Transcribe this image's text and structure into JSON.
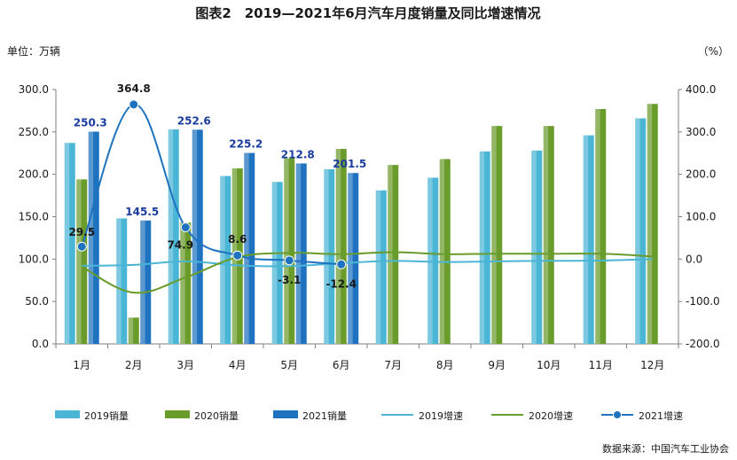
{
  "chart_data": {
    "type": "bar",
    "title": "图表2　2019—2021年6月汽车月度销量及同比增速情况",
    "left_unit": "单位：万辆",
    "right_unit": "（%）",
    "source": "数据来源：中国汽车工业协会",
    "categories": [
      "1月",
      "2月",
      "3月",
      "4月",
      "5月",
      "6月",
      "7月",
      "8月",
      "9月",
      "10月",
      "11月",
      "12月"
    ],
    "ylim": [
      0,
      300
    ],
    "y_ticks": [
      "0.0",
      "50.0",
      "100.0",
      "150.0",
      "200.0",
      "250.0",
      "300.0"
    ],
    "y2lim": [
      -200,
      400
    ],
    "y2_ticks": [
      "-200.0",
      "-100.0",
      "0.0",
      "100.0",
      "200.0",
      "300.0",
      "400.0"
    ],
    "grid": false,
    "legend_position": "bottom",
    "series": [
      {
        "name": "2019销量",
        "kind": "bar",
        "axis": "left",
        "color": "#4bb5d6",
        "values": [
          237,
          148,
          253,
          198,
          191,
          206,
          181,
          196,
          227,
          228,
          246,
          266
        ]
      },
      {
        "name": "2020销量",
        "kind": "bar",
        "axis": "left",
        "color": "#6a9c2b",
        "values": [
          194,
          31,
          143,
          207,
          219,
          230,
          211,
          218,
          257,
          257,
          277,
          283
        ]
      },
      {
        "name": "2021销量",
        "kind": "bar",
        "axis": "left",
        "color": "#1e72c0",
        "values": [
          250.3,
          145.5,
          252.6,
          225.2,
          212.8,
          201.5,
          null,
          null,
          null,
          null,
          null,
          null
        ]
      },
      {
        "name": "2019增速",
        "kind": "line",
        "axis": "right",
        "color": "#4bb5d6",
        "values": [
          -15.8,
          -13.7,
          -5.2,
          -14.6,
          -16.4,
          -9.6,
          -4.3,
          -6.9,
          -5.2,
          -4.0,
          -3.6,
          0.1
        ]
      },
      {
        "name": "2020增速",
        "kind": "line",
        "axis": "right",
        "color": "#6a9c2b",
        "values": [
          -18.0,
          -79.1,
          -43.3,
          4.4,
          14.5,
          11.6,
          16.4,
          11.6,
          12.8,
          12.5,
          12.6,
          6.4
        ]
      },
      {
        "name": "2021增速",
        "kind": "line",
        "axis": "right",
        "color": "#1e72c0",
        "marker": true,
        "values": [
          29.5,
          364.8,
          74.9,
          8.6,
          -3.1,
          -12.4,
          null,
          null,
          null,
          null,
          null,
          null
        ]
      }
    ],
    "bar_labels": [
      "250.3",
      "145.5",
      "252.6",
      "225.2",
      "212.8",
      "201.5"
    ],
    "line_labels": [
      "29.5",
      "364.8",
      "74.9",
      "8.6",
      "-3.1",
      "-12.4"
    ]
  }
}
